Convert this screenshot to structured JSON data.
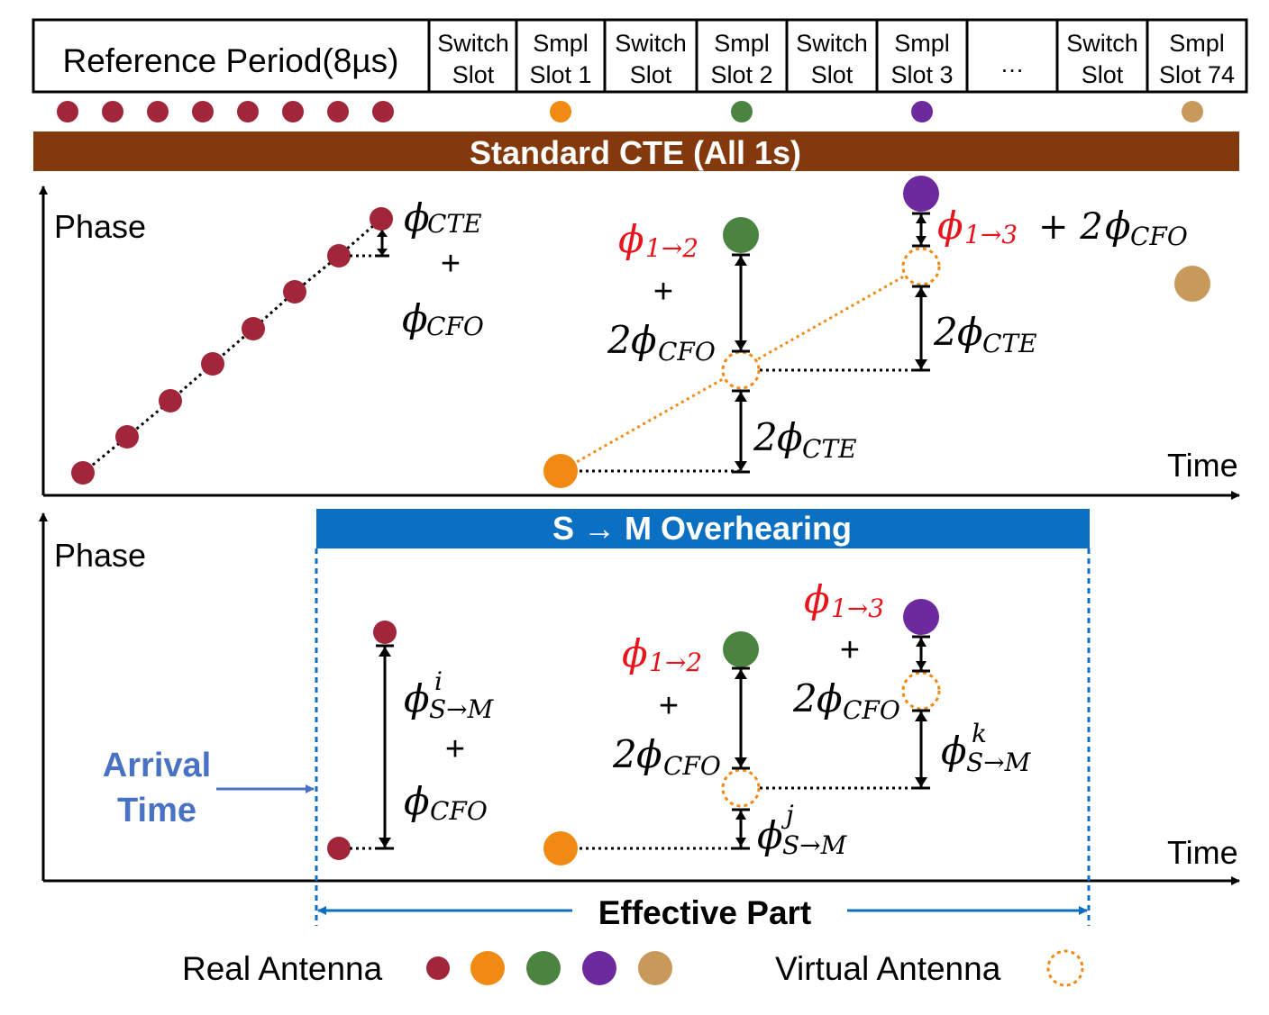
{
  "slots": {
    "reference": "Reference Period(8µs)",
    "switch_1": "Switch",
    "switch_2": "Slot",
    "s1_1": "Smpl",
    "s1_2": "Slot 1",
    "s2_1": "Smpl",
    "s2_2": "Slot 2",
    "s3_1": "Smpl",
    "s3_2": "Slot 3",
    "ellipsis": "…",
    "s74_1": "Smpl",
    "s74_2": "Slot 74"
  },
  "banner": {
    "cte": "Standard CTE (All 1s)",
    "overhearing": "S → M Overhearing"
  },
  "axes": {
    "phase": "Phase",
    "time": "Time"
  },
  "top": {
    "phi": "ϕ",
    "cte": "CTE",
    "cfo": "CFO",
    "plus": "+",
    "two": "2",
    "arrow12": "1→2",
    "arrow13": "1→3",
    "plus2": "+ 2"
  },
  "bottom": {
    "phi": "ϕ",
    "sm": "S→M",
    "i": "i",
    "j": "j",
    "k": "k",
    "cfo": "CFO",
    "plus": "+",
    "two": "2",
    "arrow12": "1→2",
    "arrow13": "1→3"
  },
  "arrival": {
    "line1": "Arrival",
    "line2": "Time"
  },
  "effective_part": "Effective Part",
  "legend": {
    "real": "Real Antenna",
    "virtual": "Virtual Antenna"
  },
  "colors": {
    "ref": "#A1263A",
    "orange": "#F08A12",
    "green": "#4A8440",
    "purple": "#6C2A9E",
    "tan": "#C79A5B",
    "brown_banner": "#84390D",
    "blue": "#0B6FC2",
    "arrival_blue": "#4A72C4",
    "red": "#E8141B"
  }
}
